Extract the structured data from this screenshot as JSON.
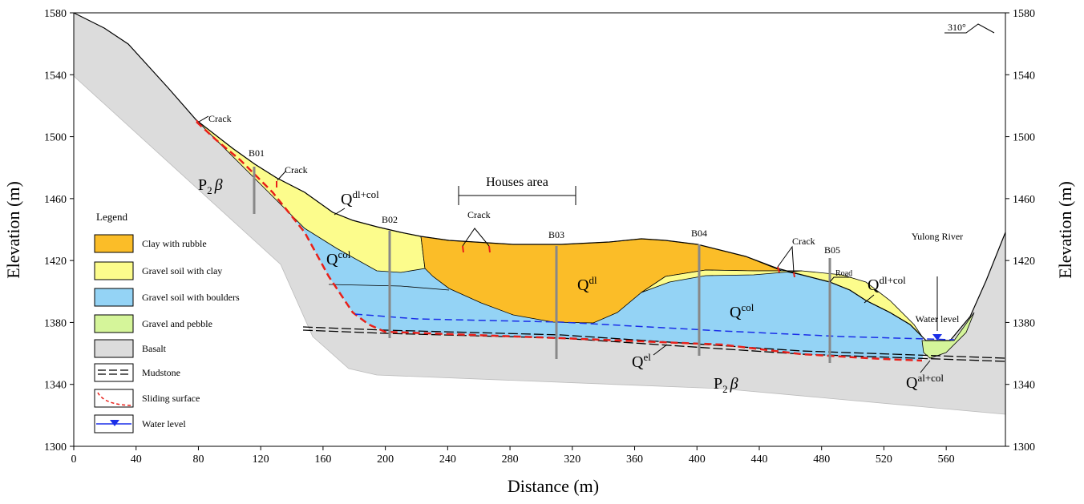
{
  "chart_data": {
    "type": "cross-section",
    "xlabel": "Distance (m)",
    "ylabel": "Elevation (m)",
    "y2label": "Elevation (m)",
    "xlim": [
      0,
      598
    ],
    "ylim": [
      1300,
      1580
    ],
    "y2lim": [
      1300,
      1580
    ],
    "xticks": [
      0,
      40,
      80,
      120,
      160,
      200,
      240,
      280,
      320,
      360,
      400,
      440,
      480,
      520,
      560
    ],
    "yticks": [
      1300,
      1340,
      1380,
      1420,
      1460,
      1500,
      1540,
      1580
    ],
    "y2ticks": [
      1300,
      1340,
      1380,
      1420,
      1460,
      1500,
      1540,
      1580
    ]
  },
  "annotations": {
    "cracks": [
      "Crack",
      "Crack",
      "Crack",
      "Crack"
    ],
    "houses": "Houses area",
    "river": "Yulong River",
    "water": "Water level",
    "road": "Road",
    "azimuth": "310°",
    "boreholes": [
      "B01",
      "B02",
      "B03",
      "B04",
      "B05"
    ]
  },
  "units": [
    {
      "base": "Q",
      "sup": "dl+col"
    },
    {
      "base": "Q",
      "sup": "col"
    },
    {
      "base": "Q",
      "sup": "dl"
    },
    {
      "base": "Q",
      "sup": "col"
    },
    {
      "base": "Q",
      "sup": "dl+col"
    },
    {
      "base": "Q",
      "sup": "el"
    },
    {
      "base": "Q",
      "sup": "al+col"
    }
  ],
  "bedrock": [
    {
      "base": "P",
      "sub": "2",
      "tail": "β"
    },
    {
      "base": "P",
      "sub": "2",
      "tail": "β"
    }
  ],
  "legend": {
    "title": "Legend",
    "items": [
      "Clay with rubble",
      "Gravel soil with clay",
      "Gravel soil with boulders",
      "Gravel and pebble",
      "Basalt",
      "Mudstone",
      "Sliding surface",
      "Water level"
    ]
  }
}
